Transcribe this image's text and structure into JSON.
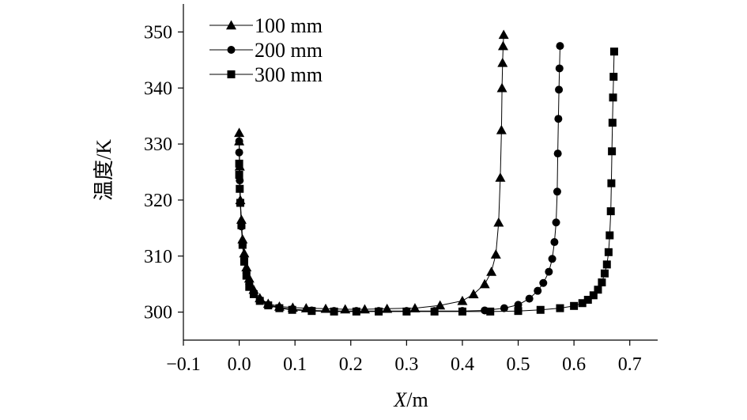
{
  "chart_data": {
    "type": "line",
    "title": "",
    "xlabel_var": "X",
    "xlabel_unit": "/m",
    "ylabel": "温度/K",
    "xlim": [
      -0.1,
      0.75
    ],
    "ylim": [
      295,
      355
    ],
    "xticks": [
      "−0.1",
      "0.0",
      "0.1",
      "0.2",
      "0.3",
      "0.4",
      "0.5",
      "0.6",
      "0.7"
    ],
    "xtick_values": [
      -0.1,
      0,
      0.1,
      0.2,
      0.3,
      0.4,
      0.5,
      0.6,
      0.7
    ],
    "yticks": [
      "300",
      "310",
      "320",
      "330",
      "340",
      "350"
    ],
    "ytick_values": [
      300,
      310,
      320,
      330,
      340,
      350
    ],
    "grid": false,
    "legend_position": "top-left",
    "series": [
      {
        "name": "100 mm",
        "marker": "triangle",
        "x": [
          0.0,
          0.0,
          0.001,
          0.002,
          0.004,
          0.006,
          0.009,
          0.013,
          0.018,
          0.026,
          0.037,
          0.052,
          0.072,
          0.096,
          0.12,
          0.155,
          0.19,
          0.225,
          0.265,
          0.315,
          0.36,
          0.4,
          0.42,
          0.44,
          0.452,
          0.46,
          0.465,
          0.468,
          0.47,
          0.471,
          0.472,
          0.473
        ],
        "y": [
          332,
          330.5,
          326,
          320,
          316.5,
          313,
          310.5,
          308,
          306,
          304,
          302.5,
          301.5,
          301,
          300.8,
          300.7,
          300.6,
          300.5,
          300.5,
          300.6,
          300.7,
          301.2,
          302,
          303.2,
          305,
          307.2,
          310.3,
          316,
          324,
          332.5,
          340,
          344.5,
          347.5
        ],
        "x_extra": [
          0.474
        ],
        "y_extra": [
          349.5
        ]
      },
      {
        "name": "200 mm",
        "marker": "circle",
        "x": [
          0.0,
          0.0,
          0.001,
          0.002,
          0.004,
          0.006,
          0.009,
          0.013,
          0.018,
          0.026,
          0.037,
          0.052,
          0.072,
          0.095,
          0.13,
          0.17,
          0.21,
          0.25,
          0.3,
          0.35,
          0.4,
          0.44,
          0.475,
          0.5,
          0.52,
          0.535,
          0.545,
          0.555,
          0.561,
          0.565,
          0.568,
          0.57,
          0.571,
          0.572,
          0.573,
          0.574
        ],
        "y": [
          330.5,
          328.5,
          323.5,
          319.5,
          315.3,
          312,
          309.5,
          307,
          305,
          303.5,
          302.2,
          301.3,
          300.8,
          300.5,
          300.3,
          300.2,
          300.2,
          300.2,
          300.2,
          300.2,
          300.2,
          300.3,
          300.7,
          301.3,
          302.4,
          303.8,
          305.2,
          307.2,
          309.5,
          312.5,
          316,
          321.5,
          328.3,
          334.5,
          339.7,
          343.5
        ],
        "x_extra": [
          0.575
        ],
        "y_extra": [
          347.5
        ]
      },
      {
        "name": "300 mm",
        "marker": "square",
        "x": [
          0.0,
          0.0,
          0.001,
          0.002,
          0.004,
          0.006,
          0.009,
          0.013,
          0.018,
          0.026,
          0.037,
          0.052,
          0.072,
          0.095,
          0.13,
          0.17,
          0.21,
          0.25,
          0.3,
          0.35,
          0.4,
          0.45,
          0.5,
          0.54,
          0.575,
          0.6,
          0.615,
          0.625,
          0.635,
          0.643,
          0.65,
          0.655,
          0.659,
          0.662,
          0.664,
          0.666,
          0.667,
          0.668,
          0.669,
          0.67,
          0.671
        ],
        "y": [
          326.5,
          324.5,
          322,
          319.5,
          315.5,
          312,
          309,
          306.5,
          304.5,
          303.2,
          302,
          301.2,
          300.7,
          300.4,
          300.2,
          300.1,
          300.1,
          300.1,
          300.1,
          300.1,
          300.1,
          300.1,
          300.2,
          300.4,
          300.7,
          301.1,
          301.6,
          302.2,
          303,
          304,
          305.3,
          306.9,
          308.5,
          310.7,
          313.7,
          318,
          323,
          328.7,
          333.8,
          338.3,
          342
        ],
        "x_extra": [
          0.672
        ],
        "y_extra": [
          346.5
        ]
      }
    ]
  }
}
